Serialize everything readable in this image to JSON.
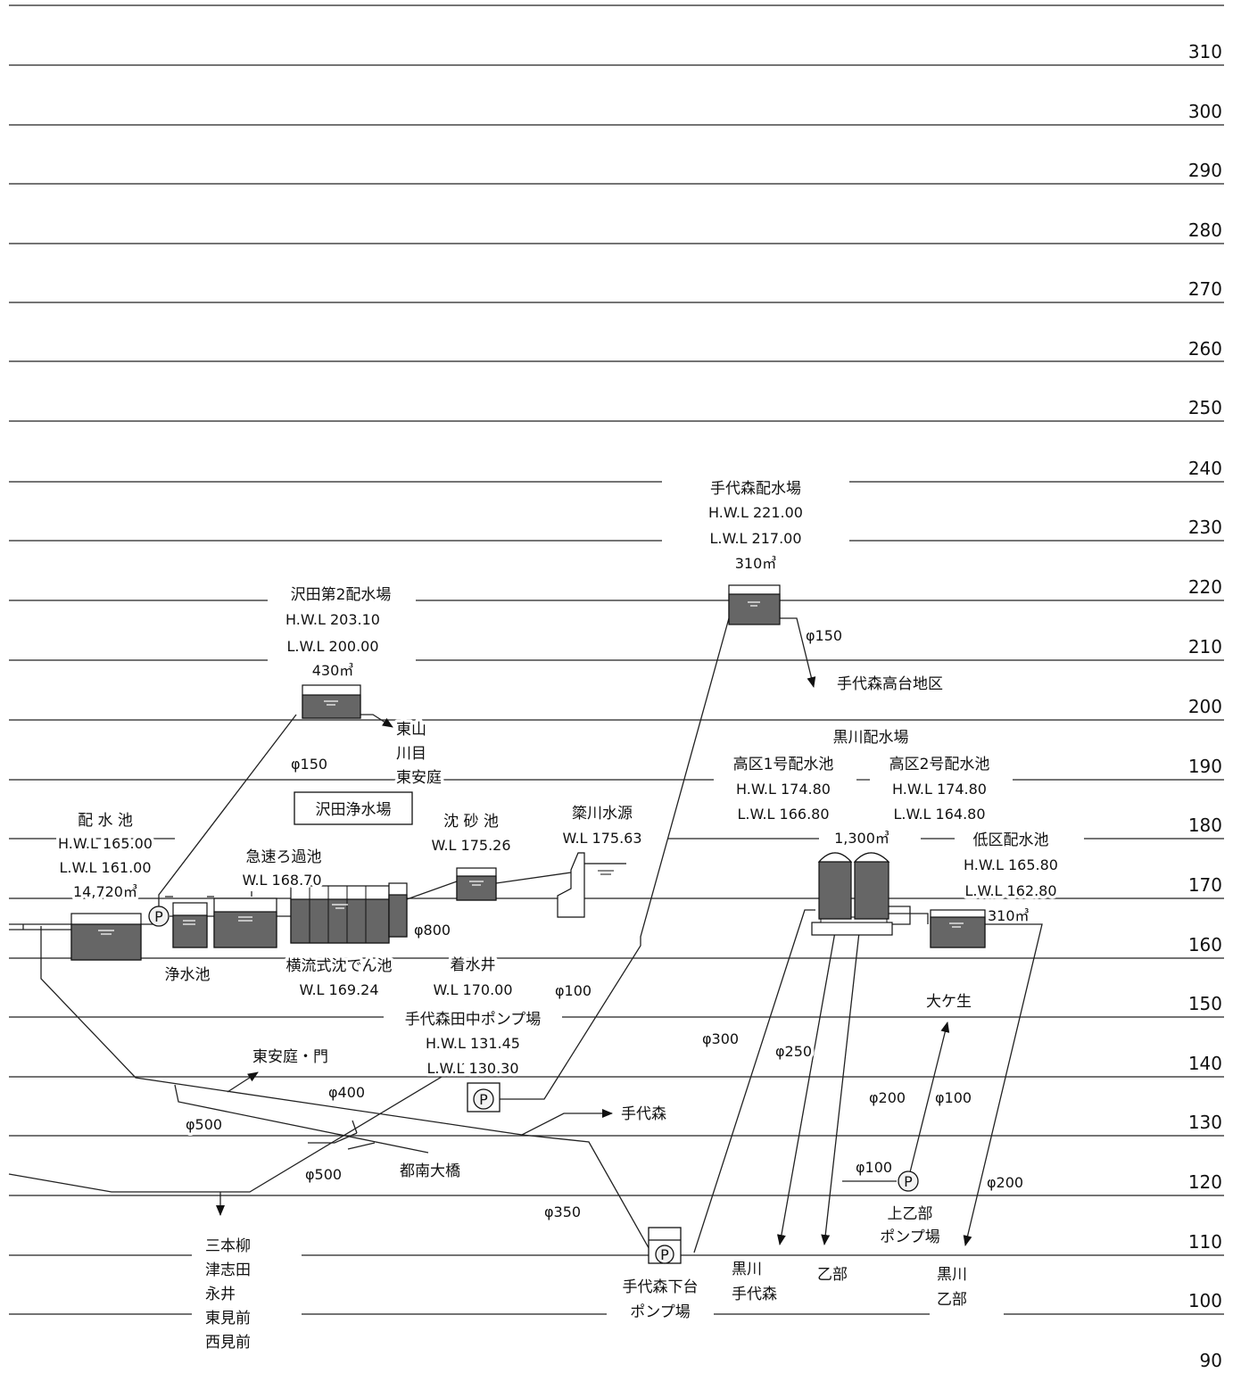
{
  "elevations": [
    "310",
    "300",
    "290",
    "280",
    "270",
    "260",
    "250",
    "240",
    "230",
    "220",
    "210",
    "200",
    "190",
    "180",
    "170",
    "160",
    "150",
    "140",
    "130",
    "120",
    "110",
    "100",
    "90"
  ],
  "facilities": {
    "tedaimori_haisuijo": {
      "name": "手代森配水場",
      "hwl": "H.W.L 221.00",
      "lwl": "L.W.L 217.00",
      "capacity": "310㎥"
    },
    "sawada_dai2": {
      "name": "沢田第2配水場",
      "hwl": "H.W.L 203.10",
      "lwl": "L.W.L 200.00",
      "capacity": "430㎥"
    },
    "sawada_plant": {
      "name": "沢田浄水場"
    },
    "haisuichi": {
      "name": "配 水 池",
      "hwl": "H.W.L 165.00",
      "lwl": "L.W.L 161.00",
      "capacity": "14,720㎥"
    },
    "kyusoku": {
      "name": "急速ろ過池",
      "wl": "W.L 168.70"
    },
    "chinsachi": {
      "name": "沈 砂 池",
      "wl": "W.L 175.26"
    },
    "yanagawa": {
      "name": "簗川水源",
      "wl": "W.L 175.63"
    },
    "joosuichi": {
      "name": "浄水池"
    },
    "yokoryu": {
      "name": "横流式沈でん池",
      "wl": "W.L 169.24"
    },
    "chakusuisei": {
      "name": "着水井",
      "wl": "W.L 170.00"
    },
    "tanaka_pump": {
      "name": "手代森田中ポンプ場",
      "hwl": "H.W.L 131.45",
      "lwl": "L.W.L 130.30"
    },
    "kurokawa": {
      "name": "黒川配水場",
      "koku1": "高区1号配水池",
      "koku1_hwl": "H.W.L 174.80",
      "koku1_lwl": "L.W.L 166.80",
      "koku2": "高区2号配水池",
      "koku2_hwl": "H.W.L 174.80",
      "koku2_lwl": "L.W.L 164.80",
      "koku_capacity": "1,300㎥",
      "teiku": "低区配水池",
      "teiku_hwl": "H.W.L 165.80",
      "teiku_lwl": "L.W.L 162.80",
      "teiku_capacity": "310㎥"
    },
    "shimodai_pump": {
      "line1": "手代森下台",
      "line2": "ポンプ場"
    },
    "kamioppe_pump": {
      "line1": "上乙部",
      "line2": "ポンプ場"
    }
  },
  "areas": {
    "tedaimori_kodai": "手代森高台地区",
    "higashiyama": [
      "東山",
      "川目",
      "東安庭"
    ],
    "higashianiwa_kado": "東安庭・門",
    "tedaimori": "手代森",
    "tonan": "都南大橋",
    "sanbongi": [
      "三本柳",
      "津志田",
      "永井",
      "東見前",
      "西見前"
    ],
    "oogayu": "大ケ生",
    "kurokawa_tedaimori": [
      "黒川",
      "手代森"
    ],
    "oppe": "乙部",
    "kurokawa_oppe": [
      "黒川",
      "乙部"
    ]
  },
  "pipes": {
    "p150a": "φ150",
    "p150b": "φ150",
    "p800": "φ800",
    "p100a": "φ100",
    "p400": "φ400",
    "p500a": "φ500",
    "p500b": "φ500",
    "p350": "φ350",
    "p300": "φ300",
    "p250": "φ250",
    "p200a": "φ200",
    "p100b": "φ100",
    "p100c": "φ100",
    "p200b": "φ200"
  },
  "pump_symbol": "P",
  "colors": {
    "tank_fill": "#666666",
    "line": "#222222"
  }
}
